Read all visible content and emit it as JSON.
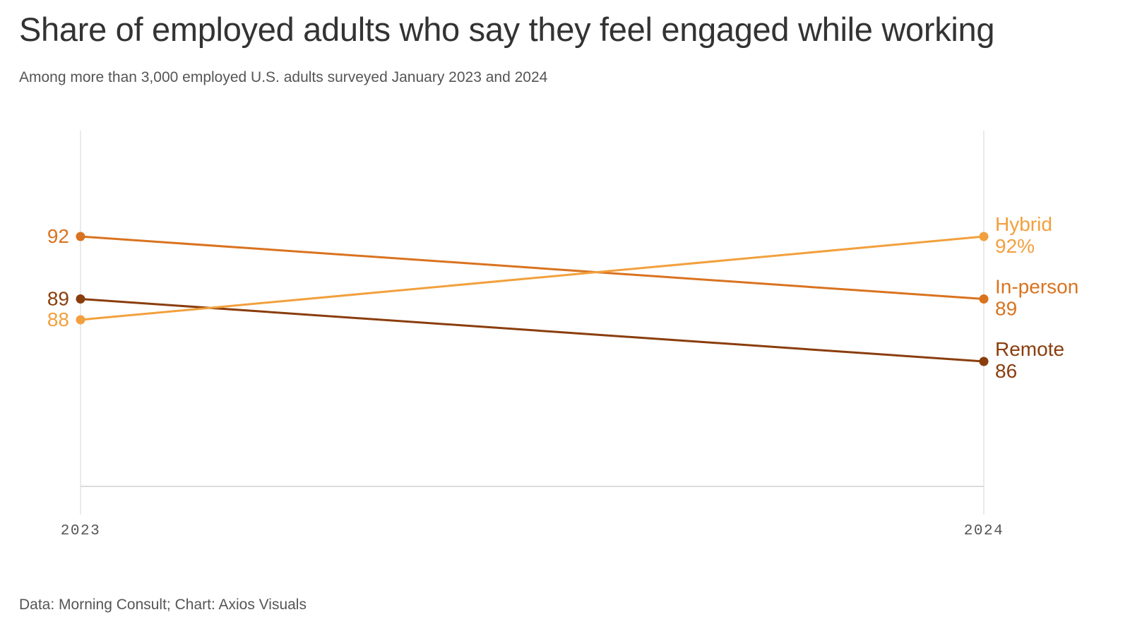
{
  "title": "Share of employed adults who say they feel engaged while working",
  "subtitle": "Among more than 3,000 employed U.S. adults surveyed January 2023 and 2024",
  "source": "Data: Morning Consult; Chart: Axios Visuals",
  "colors": {
    "hybrid": "#f2a03d",
    "in_person": "#d9731f",
    "remote": "#8a3d0c",
    "grid": "#e3e3e3",
    "axis_text": "#555555"
  },
  "chart_data": {
    "type": "line",
    "x": [
      "2023",
      "2024"
    ],
    "ylim": [
      80,
      96
    ],
    "grid": false,
    "series": [
      {
        "name": "Hybrid",
        "key": "hybrid",
        "values": [
          88,
          92
        ],
        "start_label": "88",
        "end_label": "92%"
      },
      {
        "name": "In-person",
        "key": "in_person",
        "values": [
          92,
          89
        ],
        "start_label": "92",
        "end_label": "89"
      },
      {
        "name": "Remote",
        "key": "remote",
        "values": [
          89,
          86
        ],
        "start_label": "89",
        "end_label": "86"
      }
    ],
    "legend": "direct labels at line ends"
  }
}
